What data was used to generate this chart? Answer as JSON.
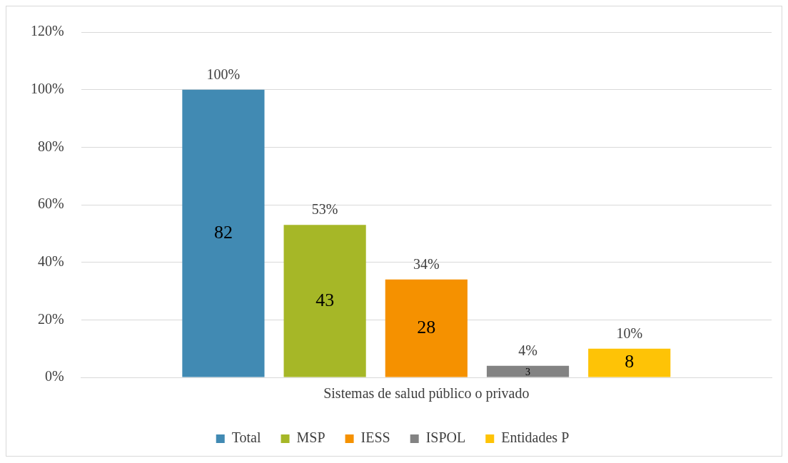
{
  "chart_data": {
    "type": "bar",
    "categories": [
      "Sistemas de salud público o privado"
    ],
    "series": [
      {
        "name": "Total",
        "color": "#418ab3",
        "values": [
          100
        ],
        "value_labels": [
          "100%"
        ]
      },
      {
        "name": "MSP",
        "color": "#a6b727",
        "values": [
          53
        ],
        "value_labels": [
          "53%"
        ]
      },
      {
        "name": "IESS",
        "color": "#f59100",
        "values": [
          34
        ],
        "value_labels": [
          "34%"
        ]
      },
      {
        "name": "ISPOL",
        "color": "#838383",
        "values": [
          4
        ],
        "value_labels": [
          "4%"
        ]
      },
      {
        "name": "Entidades P",
        "color": "#fec306",
        "values": [
          10
        ],
        "value_labels": [
          "10%"
        ]
      }
    ],
    "annotations": [
      "82",
      "43",
      "28",
      "3",
      "8"
    ],
    "ylim": [
      0,
      120
    ],
    "yticks": [
      {
        "value": 0,
        "label": "0%"
      },
      {
        "value": 20,
        "label": "20%"
      },
      {
        "value": 40,
        "label": "40%"
      },
      {
        "value": 60,
        "label": "60%"
      },
      {
        "value": 80,
        "label": "80%"
      },
      {
        "value": 100,
        "label": "100%"
      },
      {
        "value": 120,
        "label": "120%"
      }
    ],
    "grid": "y",
    "legend": "bottom"
  }
}
